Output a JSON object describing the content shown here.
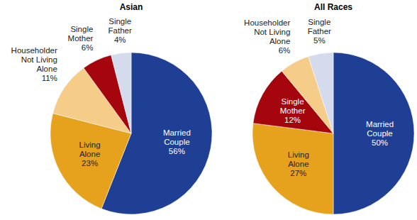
{
  "chart_data": [
    {
      "type": "pie",
      "title": "Asian",
      "categories": [
        "Married Couple",
        "Living Alone",
        "Householder Not Living Alone",
        "Single Mother",
        "Single Father"
      ],
      "values": [
        56,
        23,
        11,
        6,
        4
      ],
      "value_labels": [
        "56%",
        "23%",
        "11%",
        "6%",
        "4%"
      ],
      "colors": [
        "#1f3f94",
        "#e6a21c",
        "#f6cd88",
        "#a5060d",
        "#d3dbec"
      ],
      "data_labels": true
    },
    {
      "type": "pie",
      "title": "All Races",
      "categories": [
        "Married Couple",
        "Living Alone",
        "Single Mother",
        "Householder Not Living Alone",
        "Single Father"
      ],
      "values": [
        50,
        27,
        12,
        6,
        5
      ],
      "value_labels": [
        "50%",
        "27%",
        "12%",
        "6%",
        "5%"
      ],
      "colors": [
        "#1f3f94",
        "#e6a21c",
        "#a5060d",
        "#f6cd88",
        "#d3dbec"
      ],
      "data_labels": true
    }
  ]
}
